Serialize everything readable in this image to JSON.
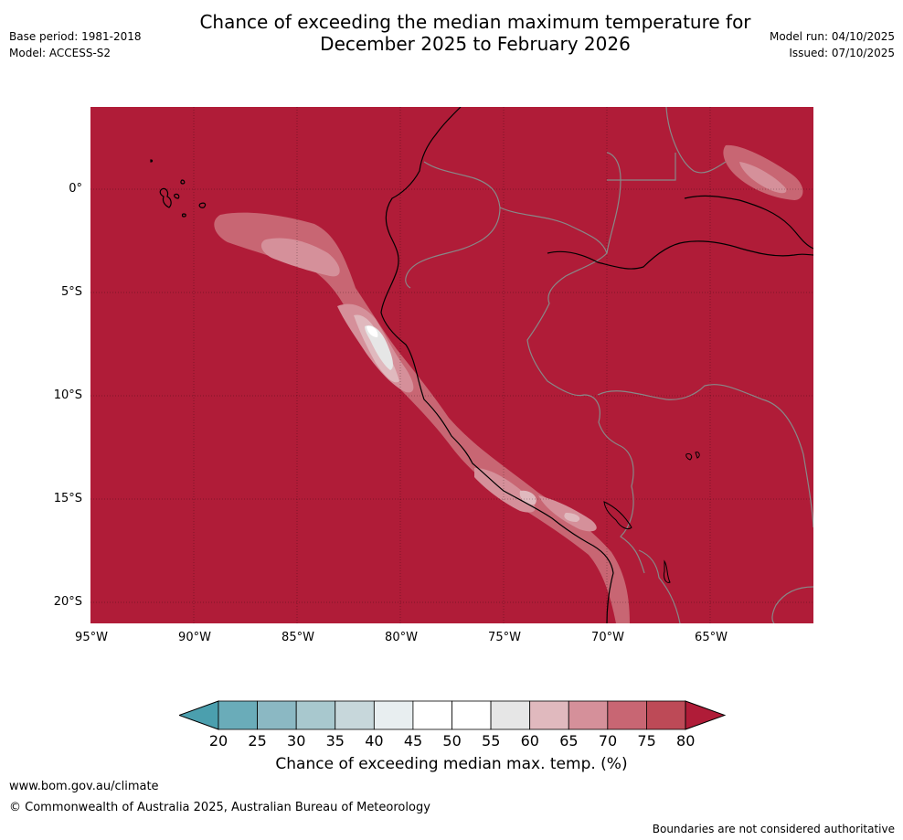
{
  "title": {
    "line1": "Chance of exceeding the median maximum temperature for",
    "line2": "December 2025 to February 2026"
  },
  "meta": {
    "base_period": "Base period: 1981-2018",
    "model": "Model: ACCESS-S2",
    "model_run": "Model run: 04/10/2025",
    "issued": "Issued: 07/10/2025"
  },
  "axes": {
    "lat_labels": [
      "0°",
      "5°S",
      "10°S",
      "15°S",
      "20°S"
    ],
    "lon_labels": [
      "95°W",
      "90°W",
      "85°W",
      "80°W",
      "75°W",
      "70°W",
      "65°W"
    ]
  },
  "colorbar": {
    "ticks": [
      "20",
      "25",
      "30",
      "35",
      "40",
      "45",
      "50",
      "55",
      "60",
      "65",
      "70",
      "75",
      "80"
    ],
    "colors": [
      "#6aacb9",
      "#8bb8c3",
      "#a8c8ce",
      "#c7d7db",
      "#e8eef0",
      "#ffffff",
      "#ffffff",
      "#e6e6e6",
      "#e0b9be",
      "#d5909a",
      "#c86673",
      "#bd4a57"
    ],
    "under_color": "#4b9fae",
    "over_color": "#b01c38",
    "title": "Chance of exceeding median max. temp. (%)"
  },
  "map": {
    "fill_color": "#b01c38",
    "region": "Western South America and eastern Pacific (Galapagos)"
  },
  "footer": {
    "url": "www.bom.gov.au/climate",
    "copyright": "© Commonwealth of Australia 2025, Australian Bureau of Meteorology",
    "disclaimer": "Boundaries are not considered authoritative"
  }
}
